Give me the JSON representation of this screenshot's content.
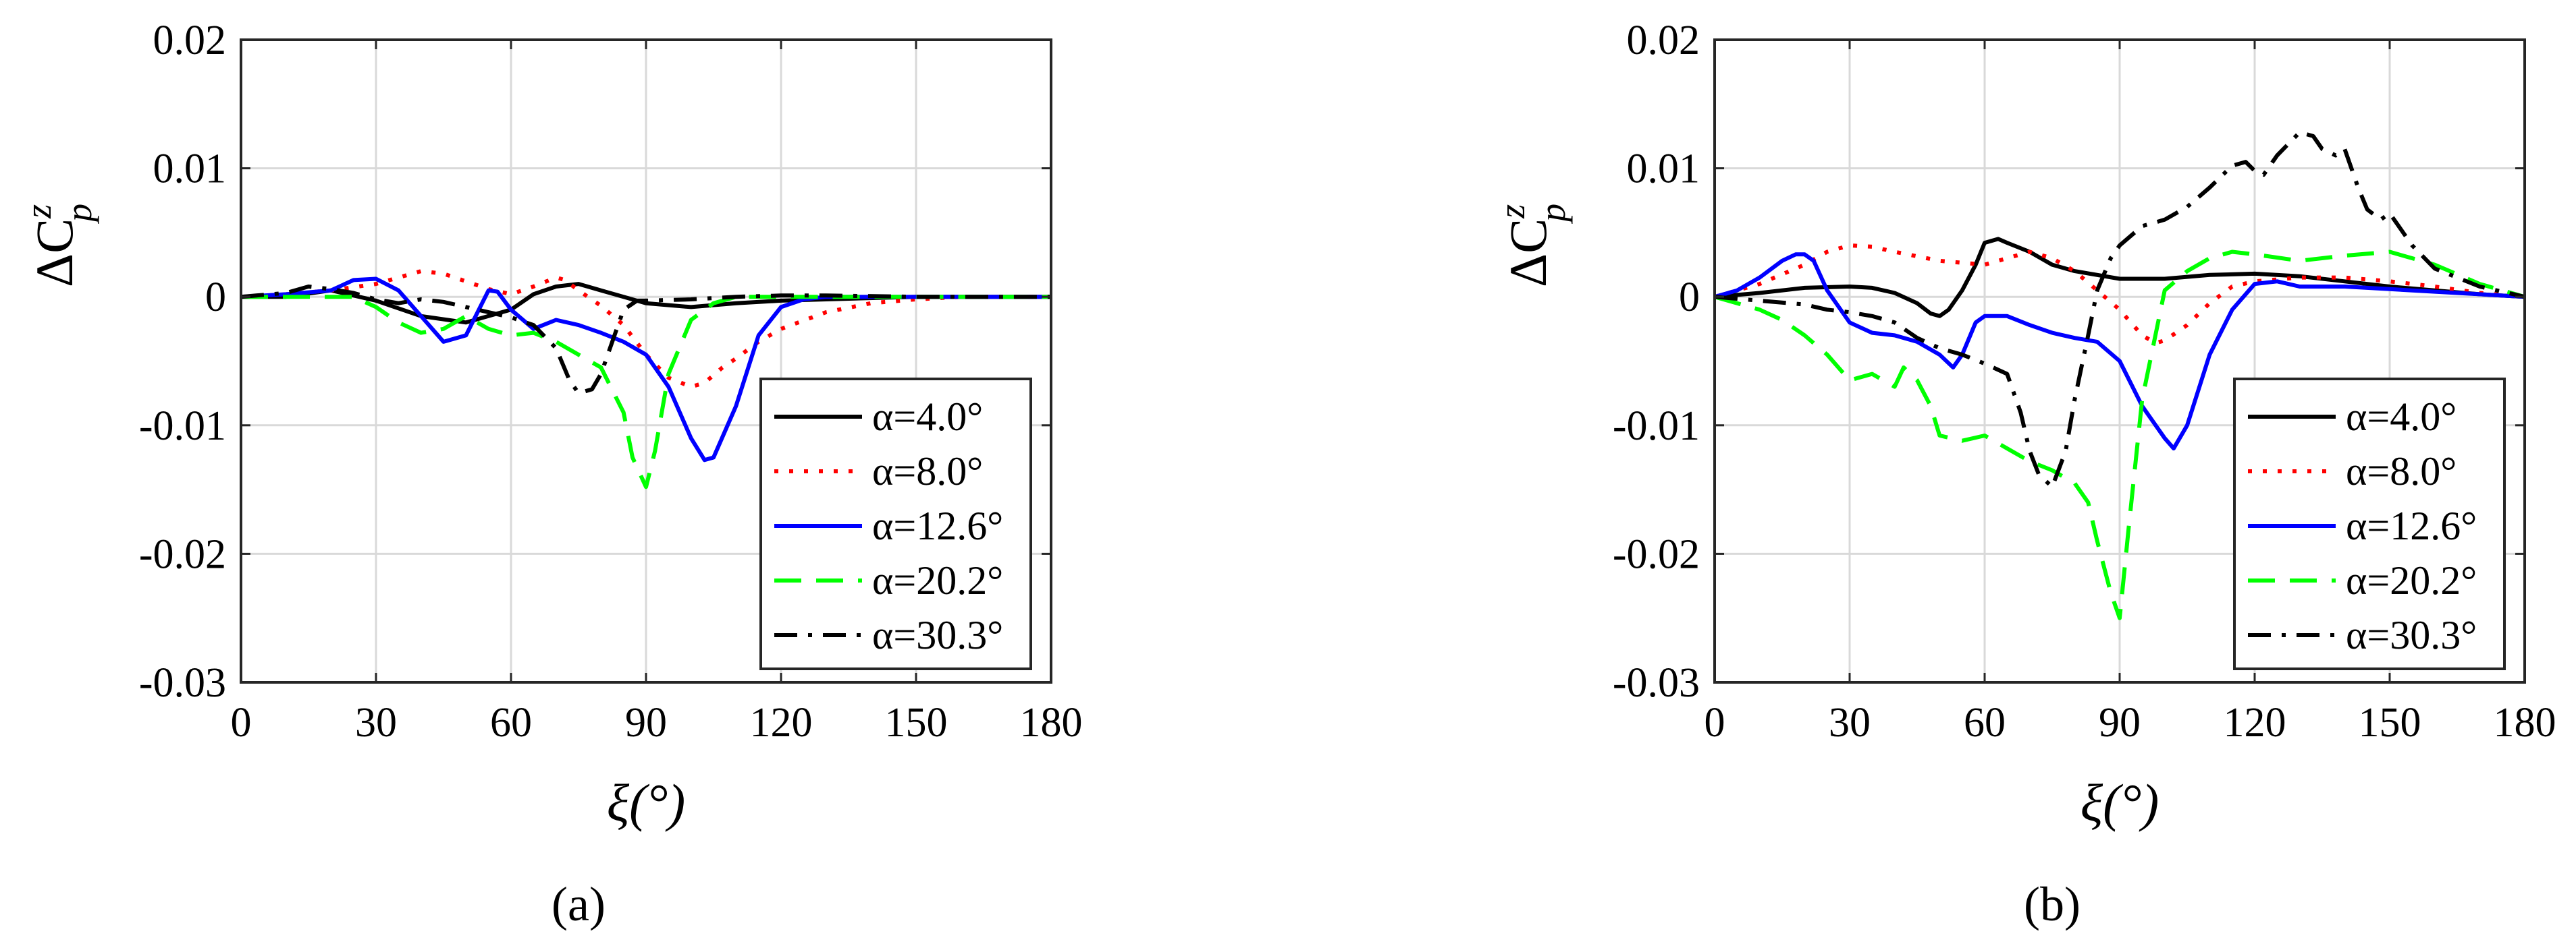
{
  "chart_data": [
    {
      "type": "line",
      "panel_label": "(a)",
      "xlabel": "ξ(°)",
      "ylabel": "ΔC",
      "ylabel_sup": "z",
      "ylabel_sub": "p",
      "xlim": [
        0,
        180
      ],
      "ylim": [
        -0.03,
        0.02
      ],
      "xticks": [
        "0",
        "30",
        "60",
        "90",
        "120",
        "150",
        "180"
      ],
      "yticks": [
        "0.02",
        "0.01",
        "0",
        "-0.01",
        "-0.02",
        "-0.03"
      ],
      "grid": true,
      "legend_position": "bottom-right",
      "series": [
        {
          "name": "α=4.0°",
          "color": "#000000",
          "dash": "solid",
          "x": [
            0,
            10,
            20,
            30,
            40,
            50,
            60,
            65,
            70,
            75,
            80,
            90,
            100,
            110,
            120,
            130,
            150,
            180
          ],
          "y": [
            0,
            0,
            0.0005,
            -0.0003,
            -0.0015,
            -0.002,
            -0.001,
            0.0002,
            0.0008,
            0.001,
            0.0005,
            -0.0005,
            -0.0008,
            -0.0005,
            -0.0003,
            -0.0002,
            0,
            0
          ]
        },
        {
          "name": "α=8.0°",
          "color": "#ff0000",
          "dash": "dot",
          "x": [
            0,
            10,
            20,
            30,
            35,
            40,
            45,
            50,
            55,
            60,
            65,
            70,
            72,
            75,
            80,
            85,
            90,
            95,
            100,
            103,
            107,
            110,
            115,
            120,
            130,
            140,
            150,
            160,
            180
          ],
          "y": [
            0,
            0.0002,
            0.0005,
            0.001,
            0.0015,
            0.002,
            0.0018,
            0.0012,
            0.0006,
            0.0002,
            0.0008,
            0.0015,
            0.0013,
            0.0005,
            -0.0007,
            -0.0022,
            -0.0045,
            -0.0063,
            -0.007,
            -0.0067,
            -0.0055,
            -0.0048,
            -0.0035,
            -0.0025,
            -0.0012,
            -0.0005,
            -0.0002,
            0,
            0
          ]
        },
        {
          "name": "α=12.6°",
          "color": "#0000ff",
          "dash": "solid",
          "x": [
            0,
            10,
            20,
            25,
            30,
            35,
            40,
            45,
            50,
            55,
            57,
            60,
            65,
            70,
            75,
            80,
            85,
            90,
            95,
            100,
            103,
            105,
            110,
            115,
            120,
            125,
            130,
            150,
            180
          ],
          "y": [
            0,
            0.0002,
            0.0005,
            0.0013,
            0.0014,
            0.0005,
            -0.0015,
            -0.0035,
            -0.003,
            0.0005,
            0.0004,
            -0.001,
            -0.0025,
            -0.0018,
            -0.0022,
            -0.0028,
            -0.0035,
            -0.0045,
            -0.007,
            -0.011,
            -0.0127,
            -0.0125,
            -0.0085,
            -0.003,
            -0.0008,
            -0.0002,
            0,
            0,
            0
          ]
        },
        {
          "name": "α=20.2°",
          "color": "#00ff00",
          "dash": "dash",
          "x": [
            0,
            10,
            20,
            25,
            30,
            35,
            40,
            45,
            50,
            55,
            60,
            65,
            70,
            75,
            80,
            85,
            87,
            90,
            92,
            95,
            100,
            105,
            110,
            120,
            130,
            150,
            180
          ],
          "y": [
            0,
            0,
            0,
            0,
            -0.0008,
            -0.002,
            -0.0028,
            -0.0025,
            -0.0015,
            -0.0025,
            -0.003,
            -0.0028,
            -0.0035,
            -0.0045,
            -0.0055,
            -0.009,
            -0.0125,
            -0.0148,
            -0.012,
            -0.006,
            -0.0018,
            -0.0005,
            0,
            0,
            0,
            0,
            0
          ]
        },
        {
          "name": "α=30.3°",
          "color": "#000000",
          "dash": "dashdot",
          "x": [
            0,
            10,
            15,
            20,
            25,
            30,
            35,
            40,
            45,
            50,
            55,
            60,
            65,
            70,
            73,
            75,
            78,
            80,
            83,
            85,
            88,
            90,
            100,
            110,
            120,
            130,
            150,
            180
          ],
          "y": [
            0,
            0.0003,
            0.0008,
            0.0006,
            0.0003,
            -0.0002,
            -0.0005,
            -0.0002,
            -0.0004,
            -0.0008,
            -0.0012,
            -0.0016,
            -0.0022,
            -0.004,
            -0.0065,
            -0.0075,
            -0.0072,
            -0.006,
            -0.003,
            -0.001,
            -0.0003,
            -0.0003,
            -0.0002,
            0,
            0.0001,
            0.0001,
            0,
            0
          ]
        }
      ]
    },
    {
      "type": "line",
      "panel_label": "(b)",
      "xlabel": "ξ(°)",
      "ylabel": "ΔC",
      "ylabel_sup": "z",
      "ylabel_sub": "p",
      "xlim": [
        0,
        180
      ],
      "ylim": [
        -0.03,
        0.02
      ],
      "xticks": [
        "0",
        "30",
        "60",
        "90",
        "120",
        "150",
        "180"
      ],
      "yticks": [
        "0.02",
        "0.01",
        "0",
        "-0.01",
        "-0.02",
        "-0.03"
      ],
      "grid": true,
      "legend_position": "bottom-right",
      "series": [
        {
          "name": "α=4.0°",
          "color": "#000000",
          "dash": "solid",
          "x": [
            0,
            10,
            20,
            30,
            35,
            40,
            45,
            48,
            50,
            52,
            55,
            58,
            60,
            63,
            65,
            70,
            75,
            80,
            90,
            100,
            110,
            120,
            130,
            140,
            150,
            160,
            170,
            180
          ],
          "y": [
            0,
            0.0003,
            0.0007,
            0.0008,
            0.0007,
            0.0003,
            -0.0005,
            -0.0013,
            -0.0015,
            -0.001,
            0.0005,
            0.0025,
            0.0042,
            0.0045,
            0.0042,
            0.0035,
            0.0025,
            0.002,
            0.0014,
            0.0014,
            0.0017,
            0.0018,
            0.0016,
            0.0012,
            0.0008,
            0.0005,
            0.0002,
            0
          ]
        },
        {
          "name": "α=8.0°",
          "color": "#ff0000",
          "dash": "dot",
          "x": [
            0,
            10,
            20,
            25,
            30,
            35,
            40,
            50,
            60,
            65,
            70,
            75,
            80,
            85,
            90,
            95,
            98,
            100,
            105,
            110,
            115,
            120,
            130,
            140,
            150,
            160,
            170,
            180
          ],
          "y": [
            0,
            0.001,
            0.0025,
            0.0035,
            0.004,
            0.0039,
            0.0035,
            0.0028,
            0.0025,
            0.003,
            0.0035,
            0.003,
            0.002,
            0.0005,
            -0.001,
            -0.003,
            -0.0036,
            -0.0034,
            -0.0022,
            -0.0005,
            0.0008,
            0.0012,
            0.0015,
            0.0015,
            0.0012,
            0.0008,
            0.0003,
            0
          ]
        },
        {
          "name": "α=12.6°",
          "color": "#0000ff",
          "dash": "solid",
          "x": [
            0,
            5,
            10,
            15,
            18,
            20,
            22,
            25,
            28,
            30,
            35,
            40,
            45,
            50,
            53,
            55,
            58,
            60,
            65,
            70,
            75,
            80,
            85,
            90,
            95,
            100,
            102,
            105,
            110,
            115,
            120,
            125,
            130,
            140,
            150,
            160,
            170,
            180
          ],
          "y": [
            0,
            0.0005,
            0.0015,
            0.0028,
            0.0033,
            0.0033,
            0.0028,
            0.0005,
            -0.001,
            -0.002,
            -0.0028,
            -0.003,
            -0.0035,
            -0.0045,
            -0.0055,
            -0.0045,
            -0.002,
            -0.0015,
            -0.0015,
            -0.0022,
            -0.0028,
            -0.0032,
            -0.0035,
            -0.005,
            -0.0085,
            -0.011,
            -0.0118,
            -0.01,
            -0.0045,
            -0.001,
            0.001,
            0.0012,
            0.0008,
            0.0008,
            0.0006,
            0.0004,
            0.0002,
            0
          ]
        },
        {
          "name": "α=20.2°",
          "color": "#00ff00",
          "dash": "dash",
          "x": [
            0,
            10,
            15,
            20,
            25,
            30,
            35,
            40,
            42,
            45,
            48,
            50,
            55,
            60,
            65,
            70,
            75,
            80,
            83,
            85,
            88,
            90,
            92,
            95,
            100,
            105,
            110,
            115,
            120,
            130,
            140,
            150,
            160,
            170,
            180
          ],
          "y": [
            0,
            -0.001,
            -0.0018,
            -0.003,
            -0.0045,
            -0.0065,
            -0.006,
            -0.007,
            -0.0055,
            -0.0065,
            -0.0085,
            -0.0108,
            -0.0112,
            -0.0108,
            -0.0118,
            -0.0128,
            -0.0135,
            -0.0145,
            -0.016,
            -0.019,
            -0.023,
            -0.025,
            -0.018,
            -0.008,
            0.0005,
            0.002,
            0.003,
            0.0035,
            0.0033,
            0.0028,
            0.0032,
            0.0035,
            0.0025,
            0.001,
            0
          ]
        },
        {
          "name": "α=30.3°",
          "color": "#000000",
          "dash": "dashdot",
          "x": [
            0,
            10,
            20,
            25,
            30,
            35,
            40,
            45,
            50,
            55,
            60,
            65,
            68,
            70,
            72,
            75,
            78,
            80,
            83,
            85,
            88,
            90,
            95,
            100,
            105,
            110,
            115,
            118,
            120,
            122,
            125,
            130,
            133,
            135,
            138,
            140,
            143,
            145,
            148,
            150,
            155,
            160,
            170,
            180
          ],
          "y": [
            0,
            -0.0003,
            -0.0006,
            -0.001,
            -0.0012,
            -0.0015,
            -0.002,
            -0.0032,
            -0.004,
            -0.0045,
            -0.0052,
            -0.006,
            -0.009,
            -0.012,
            -0.0138,
            -0.0148,
            -0.012,
            -0.008,
            -0.003,
            0.0005,
            0.003,
            0.004,
            0.0055,
            0.006,
            0.007,
            0.0085,
            0.0102,
            0.0105,
            0.0098,
            0.0095,
            0.011,
            0.0128,
            0.0125,
            0.0115,
            0.011,
            0.0115,
            0.0085,
            0.0068,
            0.006,
            0.0065,
            0.004,
            0.0022,
            0.0008,
            0
          ]
        }
      ]
    }
  ]
}
